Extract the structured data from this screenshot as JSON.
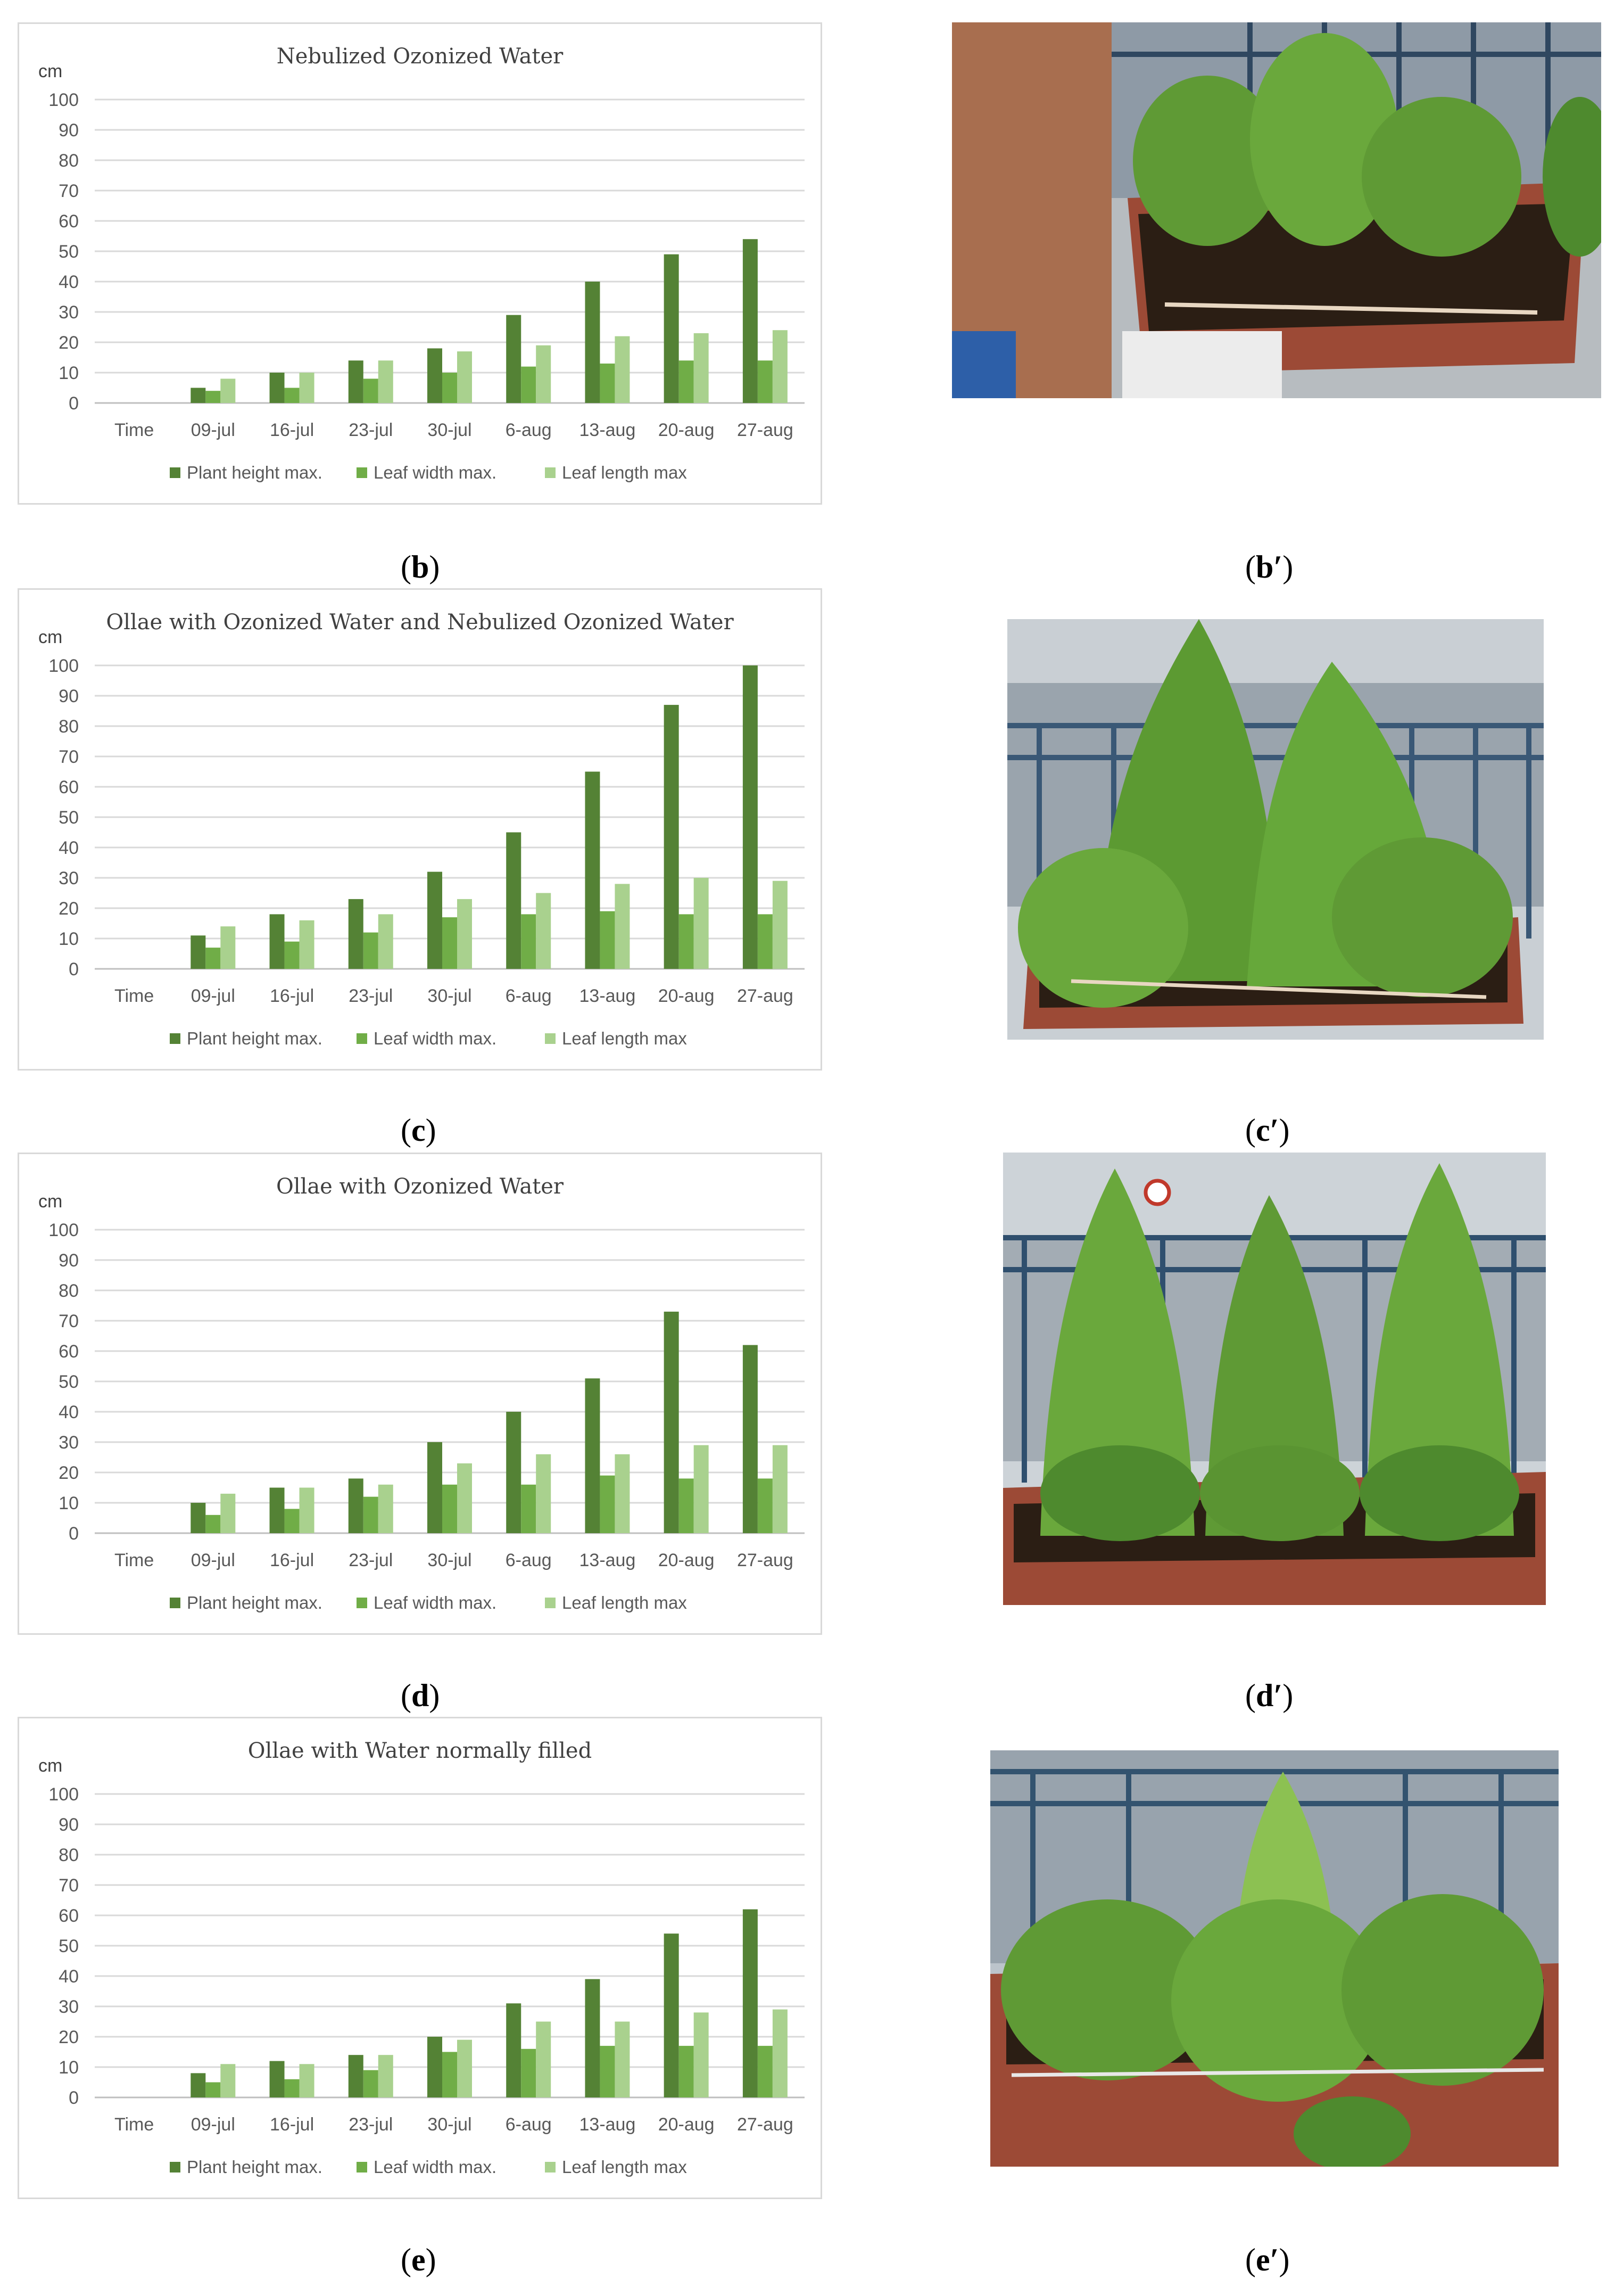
{
  "chart_data": [
    {
      "type": "bar",
      "title": "Nebulized Ozonized Water",
      "ylabel": "cm",
      "ylim": [
        0,
        100
      ],
      "yticks": [
        0,
        10,
        20,
        30,
        40,
        50,
        60,
        70,
        80,
        90,
        100
      ],
      "categories": [
        "Time",
        "09-jul",
        "16-jul",
        "23-jul",
        "30-jul",
        "6-aug",
        "13-aug",
        "20-aug",
        "27-aug"
      ],
      "series": [
        {
          "name": "Plant height max.",
          "color": "#548235",
          "values": [
            null,
            5,
            10,
            14,
            18,
            29,
            40,
            49,
            54
          ]
        },
        {
          "name": "Leaf width max.",
          "color": "#70ad47",
          "values": [
            null,
            4,
            5,
            8,
            10,
            12,
            13,
            14,
            14
          ]
        },
        {
          "name": "Leaf length max",
          "color": "#a9d18e",
          "values": [
            null,
            8,
            10,
            14,
            17,
            19,
            22,
            23,
            24
          ]
        }
      ],
      "legend": "bottom",
      "grid": true
    },
    {
      "type": "bar",
      "title": "Ollae with Ozonized Water and Nebulized Ozonized Water",
      "ylabel": "cm",
      "ylim": [
        0,
        100
      ],
      "yticks": [
        0,
        10,
        20,
        30,
        40,
        50,
        60,
        70,
        80,
        90,
        100
      ],
      "categories": [
        "Time",
        "09-jul",
        "16-jul",
        "23-jul",
        "30-jul",
        "6-aug",
        "13-aug",
        "20-aug",
        "27-aug"
      ],
      "series": [
        {
          "name": "Plant height max.",
          "color": "#548235",
          "values": [
            null,
            11,
            18,
            23,
            32,
            45,
            65,
            87,
            100
          ]
        },
        {
          "name": "Leaf width max.",
          "color": "#70ad47",
          "values": [
            null,
            7,
            9,
            12,
            17,
            18,
            19,
            18,
            18
          ]
        },
        {
          "name": "Leaf length max",
          "color": "#a9d18e",
          "values": [
            null,
            14,
            16,
            18,
            23,
            25,
            28,
            30,
            29
          ]
        }
      ],
      "legend": "bottom",
      "grid": true
    },
    {
      "type": "bar",
      "title": "Ollae with Ozonized Water",
      "ylabel": "cm",
      "ylim": [
        0,
        100
      ],
      "yticks": [
        0,
        10,
        20,
        30,
        40,
        50,
        60,
        70,
        80,
        90,
        100
      ],
      "categories": [
        "Time",
        "09-jul",
        "16-jul",
        "23-jul",
        "30-jul",
        "6-aug",
        "13-aug",
        "20-aug",
        "27-aug"
      ],
      "series": [
        {
          "name": "Plant height max.",
          "color": "#548235",
          "values": [
            null,
            10,
            15,
            18,
            30,
            40,
            51,
            73,
            62
          ]
        },
        {
          "name": "Leaf width max.",
          "color": "#70ad47",
          "values": [
            null,
            6,
            8,
            12,
            16,
            16,
            19,
            18,
            18
          ]
        },
        {
          "name": "Leaf length max",
          "color": "#a9d18e",
          "values": [
            null,
            13,
            15,
            16,
            23,
            26,
            26,
            29,
            29
          ]
        }
      ],
      "legend": "bottom",
      "grid": true
    },
    {
      "type": "bar",
      "title": "Ollae with Water normally filled",
      "ylabel": "cm",
      "ylim": [
        0,
        100
      ],
      "yticks": [
        0,
        10,
        20,
        30,
        40,
        50,
        60,
        70,
        80,
        90,
        100
      ],
      "categories": [
        "Time",
        "09-jul",
        "16-jul",
        "23-jul",
        "30-jul",
        "6-aug",
        "13-aug",
        "20-aug",
        "27-aug"
      ],
      "series": [
        {
          "name": "Plant height max.",
          "color": "#548235",
          "values": [
            null,
            8,
            12,
            14,
            20,
            31,
            39,
            54,
            62
          ]
        },
        {
          "name": "Leaf width max.",
          "color": "#70ad47",
          "values": [
            null,
            5,
            6,
            9,
            15,
            16,
            17,
            17,
            17
          ]
        },
        {
          "name": "Leaf length max",
          "color": "#a9d18e",
          "values": [
            null,
            11,
            11,
            14,
            19,
            25,
            25,
            28,
            29
          ]
        }
      ],
      "legend": "bottom",
      "grid": true
    }
  ],
  "captions": [
    {
      "chart": {
        "open": "(",
        "letter": "b",
        "close": ")"
      },
      "photo": {
        "open": "(",
        "letter": "b′",
        "close": ")"
      }
    },
    {
      "chart": {
        "open": "(",
        "letter": "c",
        "close": ")"
      },
      "photo": {
        "open": "(",
        "letter": "c′",
        "close": ")"
      }
    },
    {
      "chart": {
        "open": "(",
        "letter": "d",
        "close": ")"
      },
      "photo": {
        "open": "(",
        "letter": "d′",
        "close": ")"
      }
    },
    {
      "chart": {
        "open": "(",
        "letter": "e",
        "close": ")"
      },
      "photo": {
        "open": "(",
        "letter": "e′",
        "close": ")"
      }
    }
  ],
  "photo_colors": {
    "soil": "#3a2a1e",
    "planter": "#9c4a36",
    "leaf_dark": "#3f7a22",
    "leaf_light": "#8cc152",
    "sky": "#cfd6dc",
    "railing": "#4a6a8a"
  }
}
